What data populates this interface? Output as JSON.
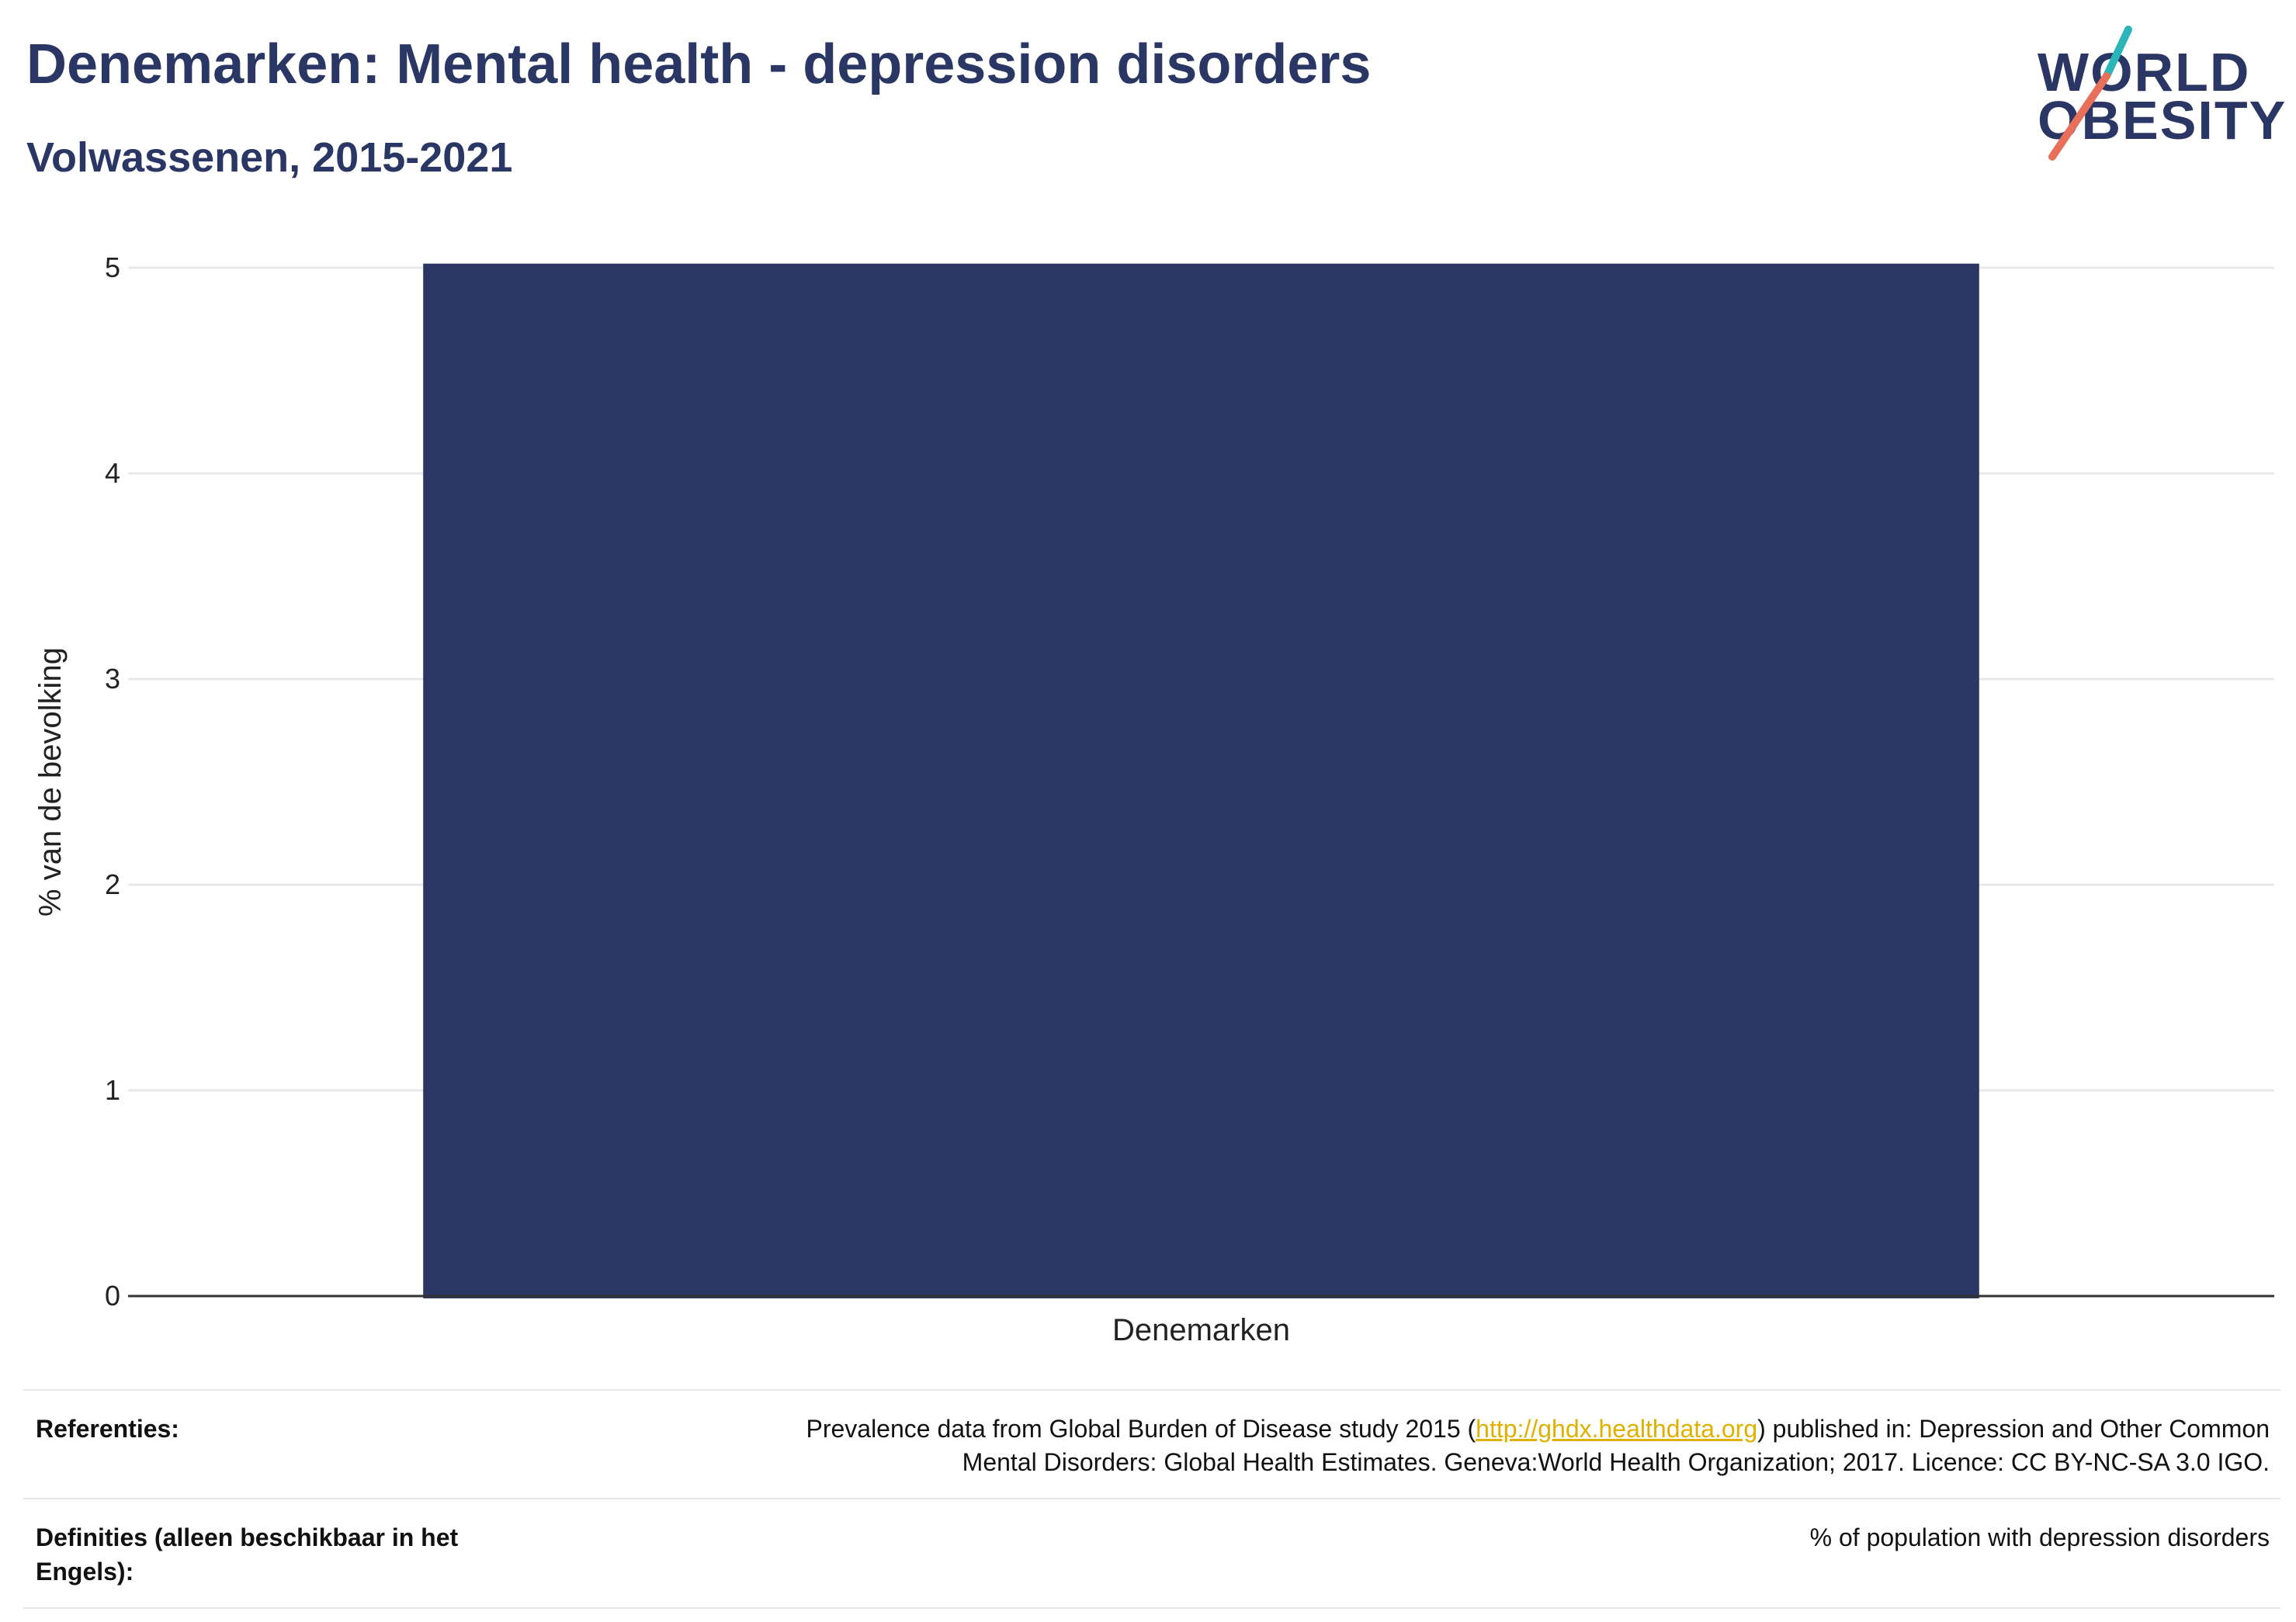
{
  "header": {
    "title": "Denemarken: Mental health - depression disorders",
    "subtitle": "Volwassenen, 2015-2021"
  },
  "logo": {
    "line1": "WORLD",
    "line2": "OBESITY",
    "accent_colors": [
      "#2bb5b8",
      "#e86f5a"
    ]
  },
  "chart_data": {
    "type": "bar",
    "categories": [
      "Denemarken"
    ],
    "values": [
      5.02
    ],
    "title": "",
    "xlabel": "",
    "ylabel": "% van de bevolking",
    "ylim": [
      0,
      5
    ],
    "yticks": [
      0,
      1,
      2,
      3,
      4,
      5
    ],
    "grid": true,
    "bar_color": "#2a3663"
  },
  "footer": {
    "references_label": "Referenties:",
    "references_pre": "Prevalence data from Global Burden of Disease study 2015 (",
    "references_link": "http://ghdx.healthdata.org",
    "references_post": ") published in: Depression and Other Common",
    "references_line2": "Mental Disorders: Global Health Estimates. Geneva:World Health Organization; 2017. Licence: CC BY-NC-SA 3.0 IGO.",
    "definitions_label": "Definities (alleen beschikbaar in het Engels):",
    "definitions_text": "% of population with depression disorders"
  }
}
